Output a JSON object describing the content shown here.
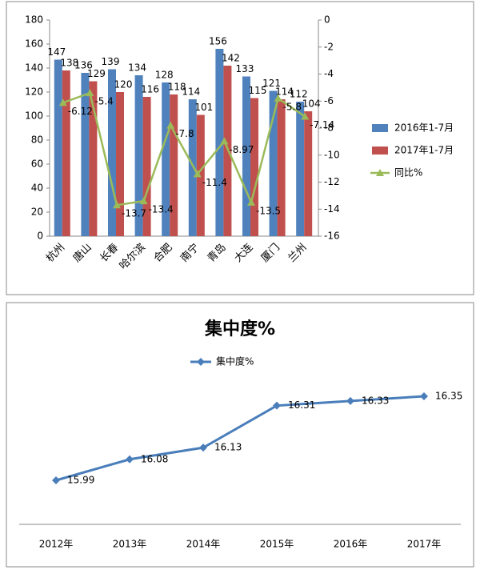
{
  "chart_data": [
    {
      "type": "combo",
      "categories": [
        "杭州",
        "唐山",
        "长春",
        "哈尔滨",
        "合肥",
        "南宁",
        "青岛",
        "大连",
        "厦门",
        "兰州"
      ],
      "series": [
        {
          "name": "2016年1-7月",
          "kind": "bar",
          "color": "#4f81bd",
          "values": [
            147,
            136,
            139,
            134,
            128,
            114,
            156,
            133,
            121,
            112
          ]
        },
        {
          "name": "2017年1-7月",
          "kind": "bar",
          "color": "#c0504d",
          "values": [
            138,
            129,
            120,
            116,
            118,
            101,
            142,
            115,
            114,
            104
          ]
        },
        {
          "name": "同比%",
          "kind": "line",
          "axis": "y2",
          "color": "#9bbb59",
          "values": [
            -6.12,
            -5.4,
            -13.7,
            -13.4,
            -7.8,
            -11.4,
            -8.97,
            -13.5,
            -5.8,
            -7.14
          ]
        }
      ],
      "ylim": [
        0,
        180
      ],
      "yticks": [
        0,
        20,
        40,
        60,
        80,
        100,
        120,
        140,
        160,
        180
      ],
      "y2lim": [
        -16,
        0
      ],
      "y2ticks": [
        -16,
        -14,
        -12,
        -10,
        -8,
        -6,
        -4,
        -2,
        0
      ],
      "grid": false,
      "legend": "right"
    },
    {
      "type": "line",
      "title": "集中度%",
      "categories": [
        "2012年",
        "2013年",
        "2014年",
        "2015年",
        "2016年",
        "2017年"
      ],
      "series": [
        {
          "name": "集中度%",
          "color": "#4a7ebb",
          "values": [
            15.99,
            16.08,
            16.13,
            16.31,
            16.33,
            16.35
          ]
        }
      ],
      "legend": "top"
    }
  ]
}
